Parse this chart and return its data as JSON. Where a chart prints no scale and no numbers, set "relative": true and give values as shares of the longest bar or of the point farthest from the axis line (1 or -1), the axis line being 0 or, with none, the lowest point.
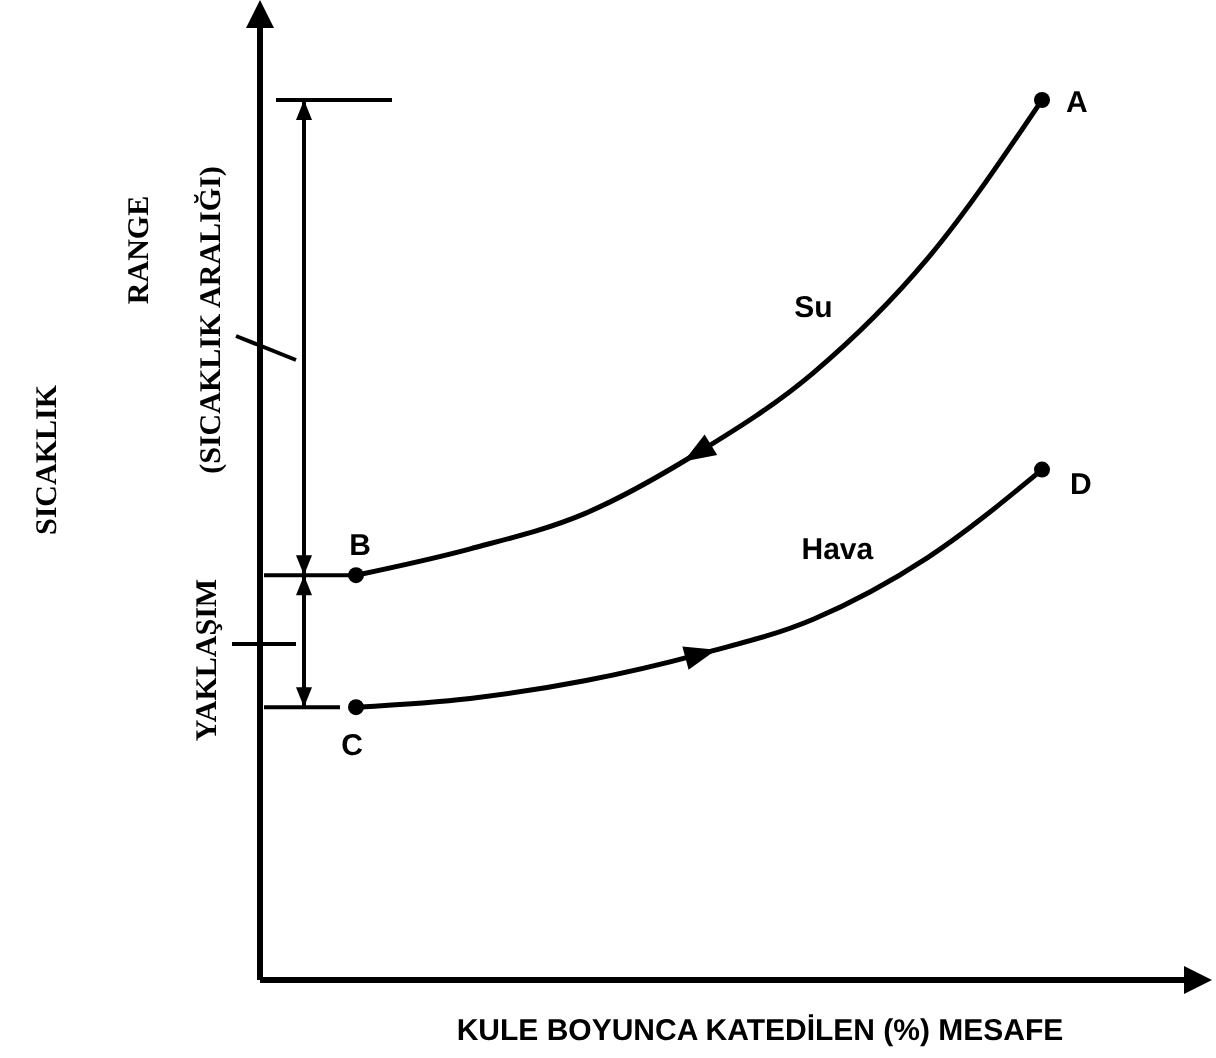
{
  "chart_data": {
    "type": "line",
    "relative": true,
    "xlabel": "KULE BOYUNCA KATEDİLEN (%) MESAFE",
    "categories": [
      null,
      null,
      null,
      null,
      null,
      null,
      null
    ],
    "series": [
      {
        "name": "Su",
        "color": "#000000",
        "values": [
          0.46,
          0.49,
          0.53,
          0.6,
          0.69,
          0.82,
          1
        ]
      },
      {
        "name": "Hava",
        "color": "#000000",
        "values": [
          0.31,
          0.32,
          0.34,
          0.37,
          0.41,
          0.48,
          0.58
        ]
      }
    ],
    "annotations": [
      "A",
      "B",
      "C",
      "D",
      "RANGE",
      "(SICAKLIK ARALIĞI)",
      "YAKLAŞIM",
      "SICAKLIK"
    ],
    "marker": "none",
    "line_style": "solid"
  }
}
